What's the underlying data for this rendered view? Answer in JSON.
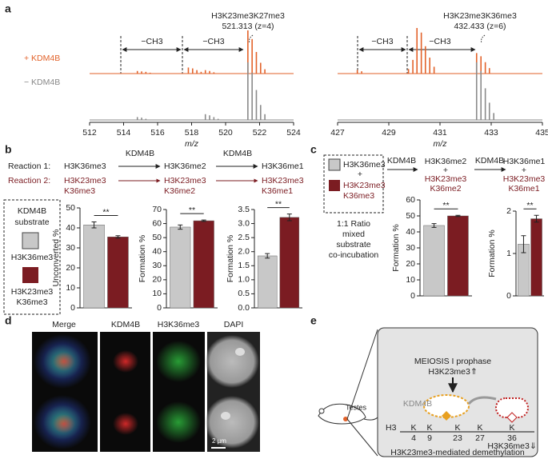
{
  "panel_labels": [
    "a",
    "b",
    "c",
    "d",
    "e"
  ],
  "chart_data": [
    {
      "type": "spectrum",
      "xlim": [
        512,
        524
      ],
      "xticks": [
        512,
        514,
        516,
        518,
        520,
        522,
        524
      ],
      "xlabel": "m/z",
      "peak_label": "H3K23me3K27me3",
      "peak_mz_label": "521.313 (z=4)",
      "annotations": [
        "−CH3",
        "−CH3"
      ],
      "series": [
        {
          "name": "+ KDM4B",
          "color": "#e2622a",
          "x": [
            514.81,
            515.06,
            515.31,
            515.56,
            517.81,
            518.06,
            518.31,
            518.56,
            518.81,
            519.06,
            519.31,
            521.31,
            521.56,
            521.81,
            522.06,
            522.31
          ],
          "values": [
            6,
            5,
            4,
            2,
            14,
            12,
            8,
            4,
            8,
            6,
            3,
            100,
            80,
            50,
            25,
            10
          ]
        },
        {
          "name": "− KDM4B",
          "color": "#8a8a8a",
          "x": [
            514.81,
            515.06,
            515.31,
            518.81,
            519.06,
            519.31,
            519.56,
            521.31,
            521.56,
            521.81,
            522.06,
            522.31
          ],
          "values": [
            5,
            4,
            2,
            10,
            8,
            5,
            2,
            100,
            82,
            52,
            26,
            10
          ]
        }
      ]
    },
    {
      "type": "spectrum",
      "xlim": [
        427,
        435
      ],
      "xticks": [
        427,
        429,
        431,
        433,
        435
      ],
      "xlabel": "m/z",
      "peak_label": "H3K23me3K36me3",
      "peak_mz_label": "432.433 (z=6)",
      "annotations": [
        "−CH3",
        "−CH3"
      ],
      "series": [
        {
          "color": "#e2622a",
          "x": [
            427.77,
            427.94,
            429.77,
            429.94,
            430.1,
            430.27,
            430.43,
            430.6,
            430.77,
            432.43,
            432.6,
            432.77,
            432.93
          ],
          "values": [
            8,
            5,
            10,
            30,
            100,
            90,
            60,
            35,
            15,
            45,
            38,
            25,
            12
          ]
        },
        {
          "color": "#8a8a8a",
          "x": [
            432.43,
            432.6,
            432.77,
            432.93,
            433.1
          ],
          "values": [
            100,
            85,
            55,
            30,
            12
          ]
        }
      ]
    },
    {
      "type": "bar",
      "ylabel": "Unconverted %",
      "values": [
        41.5,
        35.5
      ],
      "errors": [
        1.5,
        0.6
      ],
      "colors": [
        "#c8c8c8",
        "#7b1c22"
      ],
      "ylim": [
        0,
        50
      ],
      "yticks": [
        0,
        10,
        20,
        30,
        40,
        50
      ],
      "significance": "**"
    },
    {
      "type": "bar",
      "ylabel": "Formation %",
      "values": [
        57.5,
        62
      ],
      "errors": [
        1.5,
        0.5
      ],
      "colors": [
        "#c8c8c8",
        "#7b1c22"
      ],
      "ylim": [
        0,
        70
      ],
      "yticks": [
        0,
        10,
        20,
        30,
        40,
        50,
        60,
        70
      ],
      "significance": "**"
    },
    {
      "type": "bar",
      "ylabel": "Formation %",
      "values": [
        1.85,
        3.22
      ],
      "errors": [
        0.08,
        0.12
      ],
      "colors": [
        "#c8c8c8",
        "#7b1c22"
      ],
      "ylim": [
        0,
        3.5
      ],
      "yticks": [
        {
          "value": 0,
          "label": "0.0"
        },
        0.5,
        {
          "value": 1,
          "label": "1.0"
        },
        1.5,
        {
          "value": 2,
          "label": "2.0"
        },
        2.5,
        {
          "value": 3,
          "label": "3.0"
        },
        3.5
      ],
      "significance": "**"
    },
    {
      "type": "bar",
      "ylabel": "Formation %",
      "values": [
        44,
        50
      ],
      "errors": [
        1.2,
        0.4
      ],
      "colors": [
        "#c8c8c8",
        "#7b1c22"
      ],
      "ylim": [
        0,
        60
      ],
      "yticks": [
        0,
        10,
        20,
        30,
        40,
        50,
        60
      ],
      "significance": "**"
    },
    {
      "type": "bar",
      "ylabel": "Formation %",
      "values": [
        1.22,
        1.82
      ],
      "errors": [
        0.2,
        0.08
      ],
      "colors": [
        "#c8c8c8",
        "#7b1c22"
      ],
      "ylim": [
        0,
        2
      ],
      "yticks": [
        0,
        1,
        2
      ],
      "significance": "**"
    }
  ],
  "panel_b": {
    "reaction1": {
      "label": "Reaction 1:",
      "species": [
        "H3K36me3",
        "H3K36me2",
        "H3K36me1"
      ],
      "enzyme": [
        "KDM4B",
        "KDM4B"
      ]
    },
    "reaction2": {
      "label": "Reaction 2:",
      "species": [
        [
          "H3K23me3",
          "K36me3"
        ],
        [
          "H3K23me3",
          "K36me2"
        ],
        [
          "H3K23me3",
          "K36me1"
        ]
      ]
    },
    "legend": {
      "title": [
        "KDM4B",
        "substrate"
      ],
      "items": [
        [
          "H3K36me3"
        ],
        [
          "H3K23me3",
          "K36me3"
        ]
      ]
    }
  },
  "panel_c": {
    "legend": {
      "items": [
        [
          "H3K36me3"
        ],
        [
          "H3K23me3",
          "K36me3"
        ]
      ],
      "plus": "+",
      "caption": [
        "1:1 Ratio",
        "mixed",
        "substrate",
        "co-incubation"
      ]
    },
    "enzyme": [
      "KDM4B",
      "KDM4B"
    ],
    "products": [
      [
        "H3K36me2",
        "+",
        "H3K23me3",
        "K36me2"
      ],
      [
        "H3K36me1",
        "+",
        "H3K23me3",
        "K36me1"
      ]
    ]
  },
  "panel_d": {
    "columns": [
      "Merge",
      "KDM4B",
      "H3K36me3",
      "DAPI"
    ],
    "scale_bar": "2 µm"
  },
  "panel_e": {
    "organ": "Testes",
    "stage": "MEIOSIS I prophase",
    "mark_up": "H3K23me3⇑",
    "enzyme": "KDM4B",
    "histone": "H3",
    "residues": [
      "K",
      "K",
      "K",
      "K",
      "K"
    ],
    "positions": [
      "4",
      "9",
      "23",
      "27",
      "36"
    ],
    "mark_down": "H3K36me3⇓",
    "caption": "H3K23me3-mediated demethylation"
  }
}
